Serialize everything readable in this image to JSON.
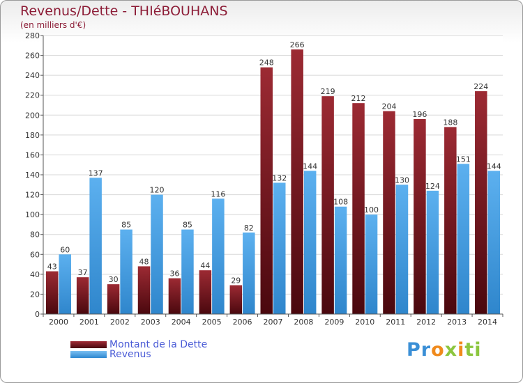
{
  "chart_data": {
    "type": "bar",
    "title": "Revenus/Dette - THIéBOUHANS",
    "subtitle": "(en milliers d'€)",
    "categories": [
      "2000",
      "2001",
      "2002",
      "2003",
      "2004",
      "2005",
      "2006",
      "2007",
      "2008",
      "2009",
      "2010",
      "2011",
      "2012",
      "2013",
      "2014"
    ],
    "series": [
      {
        "name": "Montant de la Dette",
        "color": "#7a1a22",
        "values": [
          43,
          37,
          30,
          48,
          36,
          44,
          29,
          248,
          266,
          219,
          212,
          204,
          196,
          188,
          224
        ]
      },
      {
        "name": "Revenus",
        "color": "#4ea3e8",
        "values": [
          60,
          137,
          85,
          120,
          85,
          116,
          82,
          132,
          144,
          108,
          100,
          130,
          124,
          151,
          144
        ]
      }
    ],
    "ylim": [
      0,
      280
    ],
    "yticks": [
      0,
      20,
      40,
      60,
      80,
      100,
      120,
      140,
      160,
      180,
      200,
      220,
      240,
      260,
      280
    ],
    "grid": true,
    "legend_position": "bottom-left"
  },
  "logo": {
    "text": "Proxiti",
    "colors": [
      "#3a8fd6",
      "#f08a1c",
      "#8cc63f"
    ]
  }
}
